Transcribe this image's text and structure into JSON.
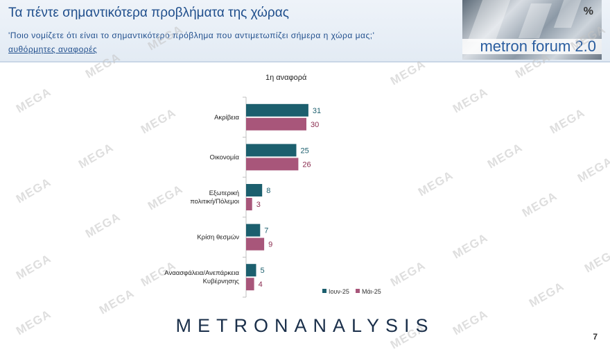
{
  "slide": {
    "title": "Τα πέντε σημαντικότερα προβλήματα της χώρας",
    "subtitle": "'Ποιο νομίζετε ότι είναι το σημαντικότερο πρόβλημα που αντιμετωπίζει σήμερα η χώρα μας;'",
    "note": "αυθόρμητες αναφορές",
    "page_number": "7",
    "logo_text": "metron forum 2.0",
    "logo_percent": "%",
    "footer_logo": "METRONANALYSIS",
    "watermark": "MEGA"
  },
  "chart_data": {
    "type": "bar",
    "orientation": "horizontal",
    "title": "1η αναφορά",
    "categories": [
      [
        "Ακρίβεια"
      ],
      [
        "Οικονομία"
      ],
      [
        "Εξωτερική",
        "πολιτική/Πόλεμοι"
      ],
      [
        "Κρίση θεσμών"
      ],
      [
        "Αναασφάλεια/Ανεπάρκεια",
        "Κυβέρνησης"
      ]
    ],
    "series": [
      {
        "name": "Ιουν-25",
        "values": [
          31,
          25,
          8,
          7,
          5
        ],
        "color": "#1c5f6e",
        "label_color": "#1c5f6e"
      },
      {
        "name": "Μάι-25",
        "values": [
          30,
          26,
          3,
          9,
          4
        ],
        "color": "#a8567a",
        "label_color": "#8a2c4f"
      }
    ],
    "xlim": [
      0,
      100
    ],
    "legend_position": "bottom-right",
    "grid": false
  }
}
